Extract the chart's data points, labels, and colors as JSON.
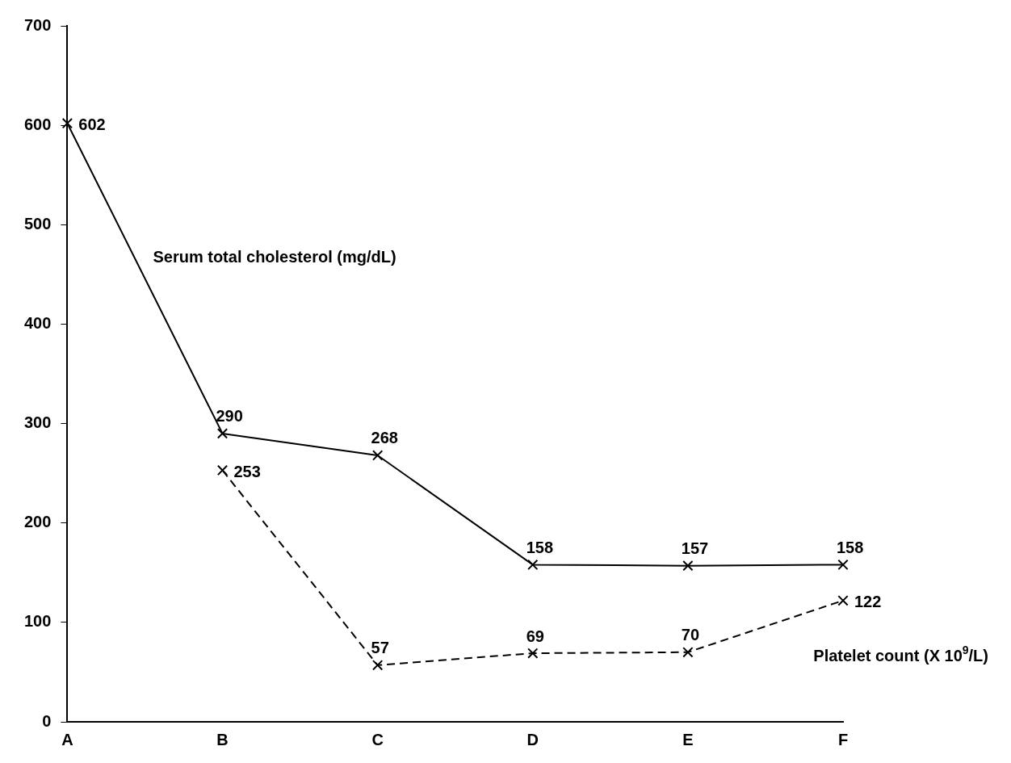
{
  "chart_data": {
    "type": "line",
    "categories": [
      "A",
      "B",
      "C",
      "D",
      "E",
      "F"
    ],
    "series": [
      {
        "name": "Serum total cholesterol (mg/dL)",
        "color": "#000000",
        "values": [
          602,
          290,
          268,
          158,
          157,
          158
        ],
        "marker": "cross",
        "line_style": "solid"
      },
      {
        "name": "Platelet count (X 10$^{9}$/L)",
        "color": "#000000",
        "values": [
          null,
          253,
          57,
          69,
          70,
          122
        ],
        "marker": "cross",
        "line_style": "dashed"
      }
    ],
    "ylim": [
      0,
      700
    ],
    "yticks": [
      0,
      100,
      200,
      300,
      400,
      500,
      600,
      700
    ],
    "grid": false,
    "legend": false,
    "data_labels": true
  }
}
